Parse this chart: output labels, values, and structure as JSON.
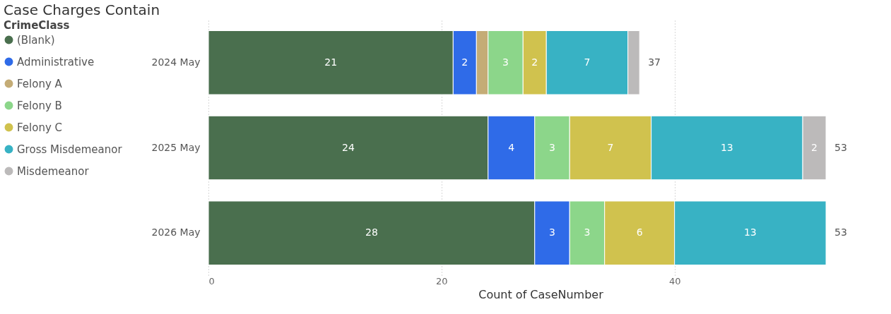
{
  "chart_data": {
    "type": "bar",
    "orientation": "horizontal",
    "stacked": true,
    "title": "Case Charges Contain",
    "xlabel": "Count of CaseNumber",
    "legend_title": "CrimeClass",
    "legend": "left",
    "grid": "x",
    "categories": [
      "2024 May",
      "2025 May",
      "2026 May"
    ],
    "xlim": [
      0,
      57
    ],
    "xticks": [
      0,
      20,
      40
    ],
    "series": [
      {
        "name": "(Blank)",
        "color": "#4a6f4e",
        "values": [
          21,
          24,
          28
        ],
        "value_labels": [
          "21",
          "24",
          "28"
        ]
      },
      {
        "name": "Administrative",
        "color": "#2f6be8",
        "values": [
          2,
          4,
          3
        ],
        "value_labels": [
          "2",
          "4",
          "3"
        ]
      },
      {
        "name": "Felony A",
        "color": "#c4ac76",
        "values": [
          1,
          null,
          null
        ],
        "value_labels": [
          null,
          null,
          null
        ]
      },
      {
        "name": "Felony B",
        "color": "#8cd68a",
        "values": [
          3,
          3,
          3
        ],
        "value_labels": [
          "3",
          "3",
          "3"
        ]
      },
      {
        "name": "Felony C",
        "color": "#d0c24e",
        "values": [
          2,
          7,
          6
        ],
        "value_labels": [
          "2",
          "7",
          "6"
        ]
      },
      {
        "name": "Gross Misdemeanor",
        "color": "#38b2c4",
        "values": [
          7,
          13,
          13
        ],
        "value_labels": [
          "7",
          "13",
          "13"
        ]
      },
      {
        "name": "Misdemeanor",
        "color": "#bcbaba",
        "values": [
          1,
          2,
          null
        ],
        "value_labels": [
          null,
          "2",
          null
        ]
      }
    ],
    "totals": [
      "37",
      "53",
      "53"
    ]
  }
}
